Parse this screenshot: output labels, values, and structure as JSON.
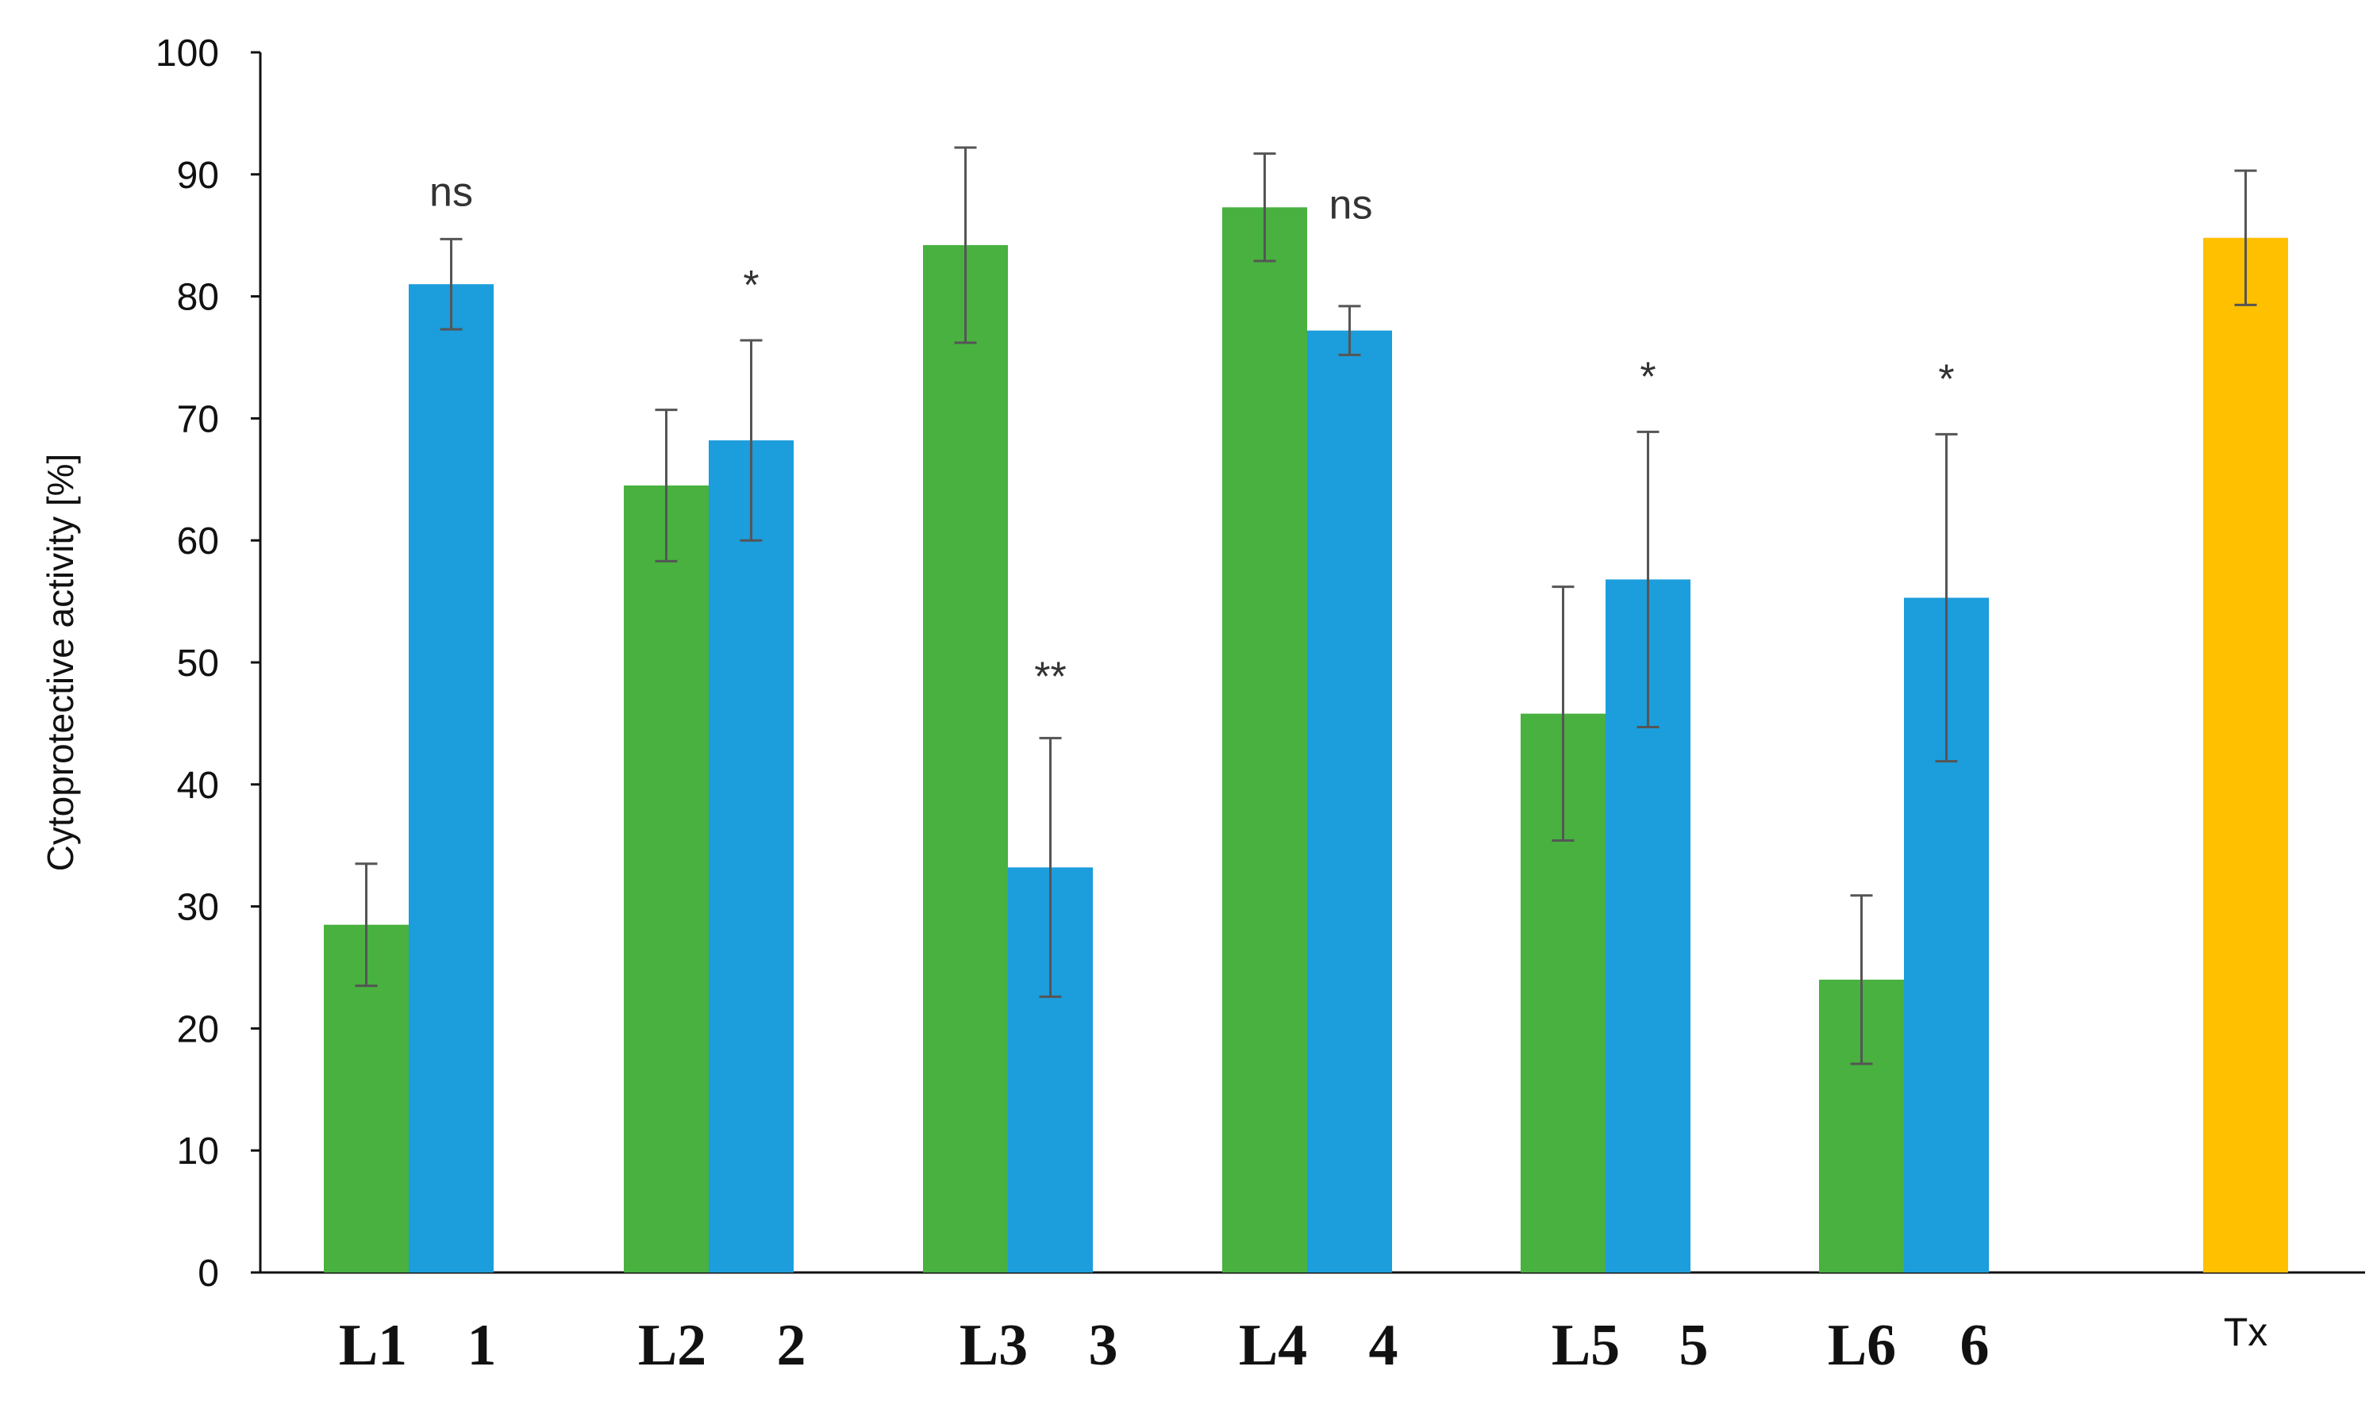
{
  "chart_data": {
    "type": "bar",
    "title": "",
    "xlabel": "",
    "ylabel": "Cytoprotective activity [%]",
    "ylim": [
      0,
      100
    ],
    "yticks": [
      0,
      10,
      20,
      30,
      40,
      50,
      60,
      70,
      80,
      90,
      100
    ],
    "grid": false,
    "legend": "none",
    "colors": {
      "green": "#48B13F",
      "blue": "#1C9DDC",
      "orange": "#FFC000",
      "error_bar": "#555555",
      "axis": "#111111"
    },
    "groups": [
      {
        "bars": [
          {
            "label": "L1",
            "value": 28.5,
            "error": 5.0,
            "color": "green"
          },
          {
            "label": "1",
            "value": 81.0,
            "error": 3.7,
            "color": "blue",
            "annotation": "ns"
          }
        ]
      },
      {
        "bars": [
          {
            "label": "L2",
            "value": 64.5,
            "error": 6.2,
            "color": "green"
          },
          {
            "label": "2",
            "value": 68.2,
            "error": 8.2,
            "color": "blue",
            "annotation": "*"
          }
        ]
      },
      {
        "bars": [
          {
            "label": "L3",
            "value": 84.2,
            "error": 8.0,
            "color": "green"
          },
          {
            "label": "3",
            "value": 33.2,
            "error": 10.6,
            "color": "blue",
            "annotation": "**"
          }
        ]
      },
      {
        "bars": [
          {
            "label": "L4",
            "value": 87.3,
            "error": 4.4,
            "color": "green",
            "annotation": "ns"
          },
          {
            "label": "4",
            "value": 77.2,
            "error": 2.0,
            "color": "blue"
          }
        ]
      },
      {
        "bars": [
          {
            "label": "L5",
            "value": 45.8,
            "error": 10.4,
            "color": "green"
          },
          {
            "label": "5",
            "value": 56.8,
            "error": 12.1,
            "color": "blue",
            "annotation": "*"
          }
        ]
      },
      {
        "bars": [
          {
            "label": "L6",
            "value": 24.0,
            "error": 6.9,
            "color": "green"
          },
          {
            "label": "6",
            "value": 55.3,
            "error": 13.4,
            "color": "blue",
            "annotation": "*"
          }
        ]
      },
      {
        "bars": [
          {
            "label": "Tx",
            "value": 84.8,
            "error": 5.5,
            "color": "orange"
          }
        ]
      }
    ]
  }
}
